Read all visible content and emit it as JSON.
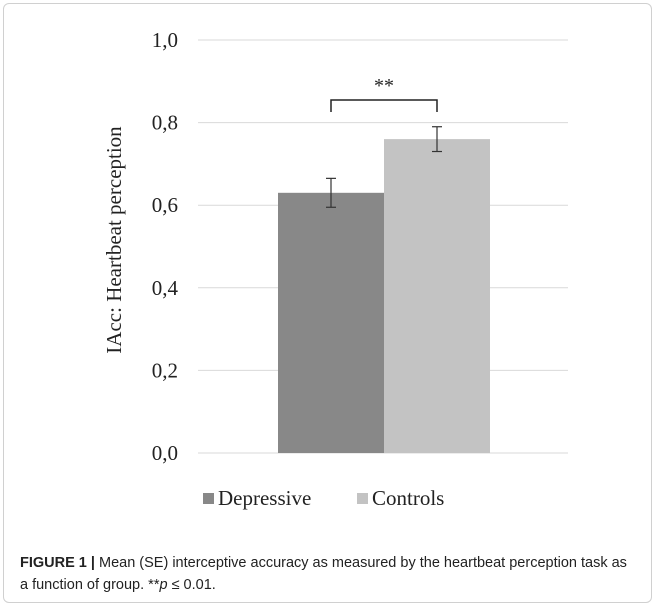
{
  "chart_data": {
    "type": "bar",
    "categories": [
      "Depressive",
      "Controls"
    ],
    "values": [
      0.63,
      0.76
    ],
    "errors": [
      0.035,
      0.03
    ],
    "colors": [
      "#888888",
      "#c3c3c3"
    ],
    "ylabel": "IAcc: Heartbeat perception",
    "ylim": [
      0.0,
      1.0
    ],
    "yticks": [
      "0,0",
      "0,2",
      "0,4",
      "0,6",
      "0,8",
      "1,0"
    ],
    "grid": true,
    "legend_position": "bottom",
    "legend": [
      "Depressive",
      "Controls"
    ],
    "annotation": "**"
  },
  "caption": {
    "label": "FIGURE 1 |",
    "text": " Mean (SE) interceptive accuracy as measured by the heartbeat perception task as a function of group. **",
    "p_symbol": "p",
    "p_text": " ≤ 0.01."
  }
}
